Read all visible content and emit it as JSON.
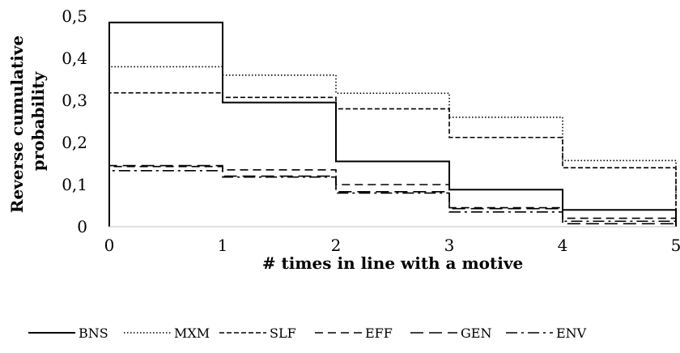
{
  "chart_data": {
    "type": "line",
    "step": true,
    "xlabel": "# times in line with a motive",
    "ylabel": [
      "Reverse cumulative",
      "probability"
    ],
    "x_ticks": [
      "0",
      "1",
      "2",
      "3",
      "4",
      "5"
    ],
    "y_ticks": [
      "0",
      "0,1",
      "0,2",
      "0,3",
      "0,4",
      "0,5"
    ],
    "xlim": [
      0,
      5
    ],
    "ylim": [
      0,
      0.5
    ],
    "grid": false,
    "legend_position": "bottom",
    "series": [
      {
        "name": "BNS",
        "values": [
          0.485,
          0.295,
          0.155,
          0.088,
          0.04
        ],
        "color": "#000000",
        "dash": "solid"
      },
      {
        "name": "MXM",
        "values": [
          0.38,
          0.36,
          0.317,
          0.26,
          0.157
        ],
        "color": "#000000",
        "dash": "dotted"
      },
      {
        "name": "SLF",
        "values": [
          0.318,
          0.307,
          0.28,
          0.212,
          0.14
        ],
        "color": "#000000",
        "dash": "short-dash"
      },
      {
        "name": "EFF",
        "values": [
          0.143,
          0.135,
          0.1,
          0.045,
          0.02
        ],
        "color": "#000000",
        "dash": "dash"
      },
      {
        "name": "GEN",
        "values": [
          0.145,
          0.12,
          0.083,
          0.043,
          0.007
        ],
        "color": "#000000",
        "dash": "long-dash"
      },
      {
        "name": "ENV",
        "values": [
          0.133,
          0.118,
          0.08,
          0.035,
          0.013
        ],
        "color": "#000000",
        "dash": "dash-dot"
      }
    ]
  }
}
